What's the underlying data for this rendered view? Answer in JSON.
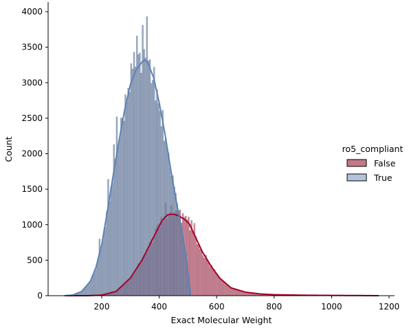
{
  "chart_data": {
    "type": "histogram",
    "xlabel": "Exact Molecular Weight",
    "ylabel": "Count",
    "xlim": [
      0,
      1240
    ],
    "ylim": [
      0,
      4120
    ],
    "x_ticks": [
      200,
      400,
      600,
      800,
      1000,
      1200
    ],
    "y_ticks": [
      0,
      500,
      1000,
      1500,
      2000,
      2500,
      3000,
      3500,
      4000
    ],
    "grid": false,
    "legend_title": "ro5_compliant",
    "legend_position": "center-right",
    "bin_width": 5,
    "series": [
      {
        "name": "False",
        "color": "#a50026",
        "kde": [
          [
            70,
            0
          ],
          [
            150,
            0
          ],
          [
            200,
            8
          ],
          [
            250,
            60
          ],
          [
            300,
            250
          ],
          [
            340,
            500
          ],
          [
            380,
            820
          ],
          [
            410,
            1060
          ],
          [
            430,
            1140
          ],
          [
            450,
            1150
          ],
          [
            470,
            1120
          ],
          [
            490,
            1070
          ],
          [
            505,
            1010
          ],
          [
            520,
            880
          ],
          [
            550,
            620
          ],
          [
            580,
            420
          ],
          [
            610,
            250
          ],
          [
            650,
            110
          ],
          [
            700,
            50
          ],
          [
            750,
            25
          ],
          [
            800,
            14
          ],
          [
            900,
            7
          ],
          [
            1000,
            4
          ],
          [
            1100,
            2
          ],
          [
            1165,
            0
          ]
        ],
        "spikes": [
          [
            420,
            1310
          ],
          [
            440,
            1270
          ],
          [
            470,
            1210
          ],
          [
            500,
            1110
          ],
          [
            510,
            1060
          ],
          [
            520,
            1020
          ]
        ]
      },
      {
        "name": "True",
        "color": "#4e79b0",
        "kde": [
          [
            70,
            0
          ],
          [
            100,
            10
          ],
          [
            130,
            60
          ],
          [
            160,
            200
          ],
          [
            180,
            400
          ],
          [
            200,
            720
          ],
          [
            220,
            1200
          ],
          [
            240,
            1700
          ],
          [
            260,
            2180
          ],
          [
            280,
            2620
          ],
          [
            300,
            2980
          ],
          [
            320,
            3180
          ],
          [
            340,
            3290
          ],
          [
            350,
            3320
          ],
          [
            360,
            3280
          ],
          [
            380,
            3080
          ],
          [
            400,
            2720
          ],
          [
            420,
            2280
          ],
          [
            440,
            1780
          ],
          [
            460,
            1320
          ],
          [
            480,
            880
          ],
          [
            495,
            500
          ],
          [
            505,
            150
          ],
          [
            510,
            0
          ]
        ],
        "spikes": [
          [
            300,
            3270
          ],
          [
            310,
            3430
          ],
          [
            320,
            3660
          ],
          [
            330,
            3420
          ],
          [
            340,
            3810
          ],
          [
            350,
            3350
          ],
          [
            355,
            3930
          ],
          [
            360,
            3310
          ],
          [
            380,
            3220
          ],
          [
            400,
            2600
          ],
          [
            240,
            2130
          ],
          [
            220,
            1640
          ],
          [
            190,
            800
          ],
          [
            250,
            2520
          ]
        ]
      }
    ]
  }
}
